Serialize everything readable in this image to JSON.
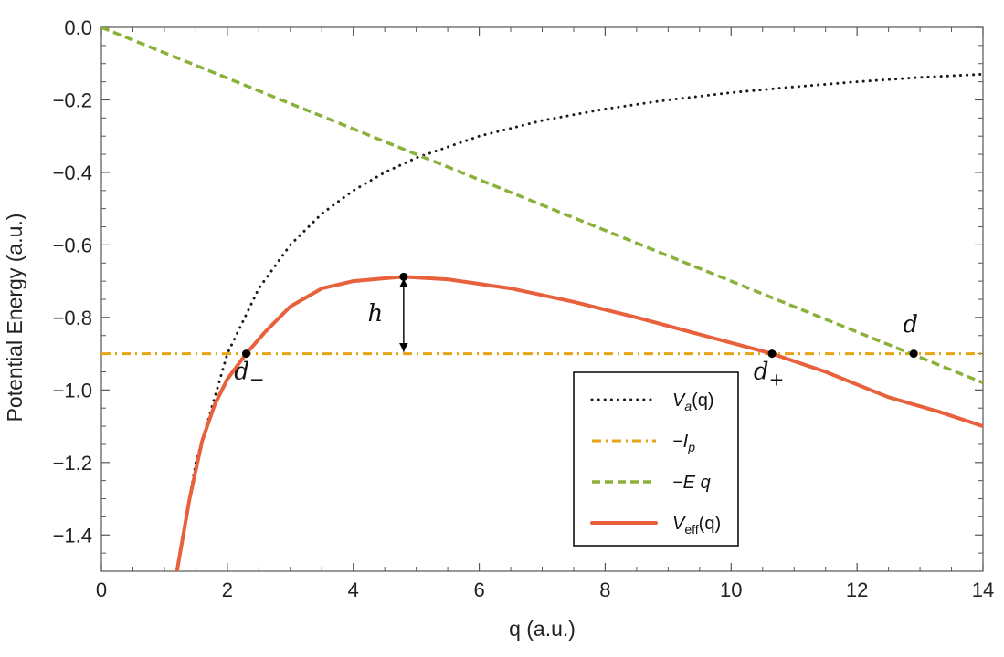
{
  "chart_data": {
    "type": "line",
    "title": "",
    "xlabel": "q (a.u.)",
    "ylabel": "Potential Energy (a.u.)",
    "xlim": [
      0,
      14
    ],
    "ylim": [
      -1.5,
      0.0
    ],
    "xticks": [
      0,
      2,
      4,
      6,
      8,
      10,
      12,
      14
    ],
    "yticks": [
      0.0,
      -0.2,
      -0.4,
      -0.6,
      -0.8,
      -1.0,
      -1.2,
      -1.4
    ],
    "xtick_labels": [
      "0",
      "2",
      "4",
      "6",
      "8",
      "10",
      "12",
      "14"
    ],
    "ytick_labels": [
      "0.0",
      "−0.2",
      "−0.4",
      "−0.6",
      "−0.8",
      "−1.0",
      "−1.2",
      "−1.4"
    ],
    "grid": false,
    "legend_position": "bottom-right",
    "series": [
      {
        "name": "V_a(q)",
        "legend": {
          "main": "V",
          "sub": "a",
          "rest": "(q)"
        },
        "style": "dotted",
        "color": "#1a1a1a",
        "x": [
          1.2,
          1.5,
          2,
          2.5,
          3,
          3.5,
          4,
          4.5,
          5,
          6,
          7,
          8,
          9,
          10,
          11,
          12,
          13,
          14
        ],
        "y": [
          -1.5,
          -1.2,
          -0.9,
          -0.72,
          -0.6,
          -0.514,
          -0.45,
          -0.4,
          -0.36,
          -0.3,
          -0.257,
          -0.225,
          -0.2,
          -0.18,
          -0.164,
          -0.15,
          -0.138,
          -0.129
        ]
      },
      {
        "name": "−I_p",
        "legend": {
          "main": "−I",
          "sub": "p",
          "rest": ""
        },
        "style": "dashdot",
        "color": "#e8a317",
        "x": [
          0,
          14
        ],
        "y": [
          -0.9,
          -0.9
        ]
      },
      {
        "name": "−E q",
        "legend": {
          "main": "−E q",
          "sub": "",
          "rest": ""
        },
        "style": "dashed",
        "color": "#8ab13a",
        "x": [
          0,
          14
        ],
        "y": [
          0.0,
          -0.98
        ]
      },
      {
        "name": "V_eff(q)",
        "legend": {
          "main": "V",
          "sub": "eff",
          "rest": "(q)"
        },
        "style": "solid",
        "color": "#e8603c",
        "x": [
          1.2,
          1.4,
          1.6,
          1.8,
          2.0,
          2.3,
          2.6,
          3.0,
          3.5,
          4.0,
          4.5,
          4.8,
          5.5,
          6.5,
          7.5,
          8.5,
          9.5,
          10.65,
          11.5,
          12.5,
          13.3,
          14.0
        ],
        "y": [
          -1.5,
          -1.3,
          -1.14,
          -1.04,
          -0.97,
          -0.9,
          -0.84,
          -0.77,
          -0.72,
          -0.7,
          -0.692,
          -0.688,
          -0.695,
          -0.72,
          -0.757,
          -0.8,
          -0.847,
          -0.9,
          -0.95,
          -1.02,
          -1.06,
          -1.1
        ]
      }
    ],
    "points": [
      {
        "x": 2.3,
        "y": -0.9
      },
      {
        "x": 4.8,
        "y": -0.688
      },
      {
        "x": 10.65,
        "y": -0.9
      },
      {
        "x": 12.9,
        "y": -0.9
      }
    ],
    "annotations": [
      {
        "main": "d",
        "sub": "−",
        "x": 2.35,
        "y": -0.97
      },
      {
        "main": "d",
        "sub": "+",
        "x": 10.6,
        "y": -0.97
      },
      {
        "main": "d",
        "sub": "",
        "x": 12.85,
        "y": -0.84
      },
      {
        "main": "h",
        "sub": "",
        "x": 4.35,
        "y": -0.81
      }
    ],
    "barrier_arrow": {
      "x": 4.8,
      "y_from": -0.688,
      "y_to": -0.9
    }
  }
}
